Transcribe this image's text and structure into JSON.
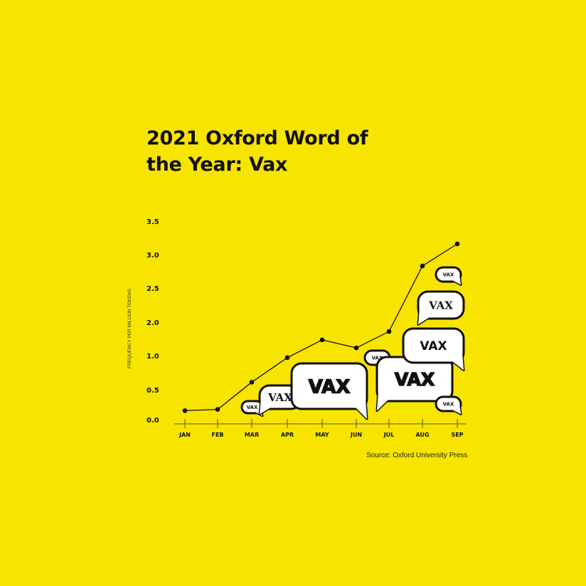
{
  "chart_data": {
    "type": "line",
    "title": "2021 Oxford Word of the Year: Vax",
    "title_lines": [
      "2021 Oxford Word of",
      "the Year: Vax"
    ],
    "ylabel": "FREQUENCY PER MILLION TOKENS",
    "xlabel": "",
    "categories": [
      "JAN",
      "FEB",
      "MAR",
      "APR",
      "MAY",
      "JUN",
      "JUL",
      "AUG",
      "SEP"
    ],
    "values": [
      0.15,
      0.17,
      0.61,
      0.97,
      1.47,
      1.23,
      1.72,
      2.83,
      3.16
    ],
    "y_tick_labels": [
      "0.0",
      "0.5",
      "1.0",
      "2.0",
      "2.5",
      "3.0",
      "3.5"
    ],
    "ylim": [
      0,
      3.5
    ],
    "grid": false,
    "source": "Source: Oxford University Press",
    "bubble_word": "VAX",
    "colors": {
      "background": "#f7e400",
      "line": "#111111",
      "bubble_fill": "#ffffff"
    }
  }
}
